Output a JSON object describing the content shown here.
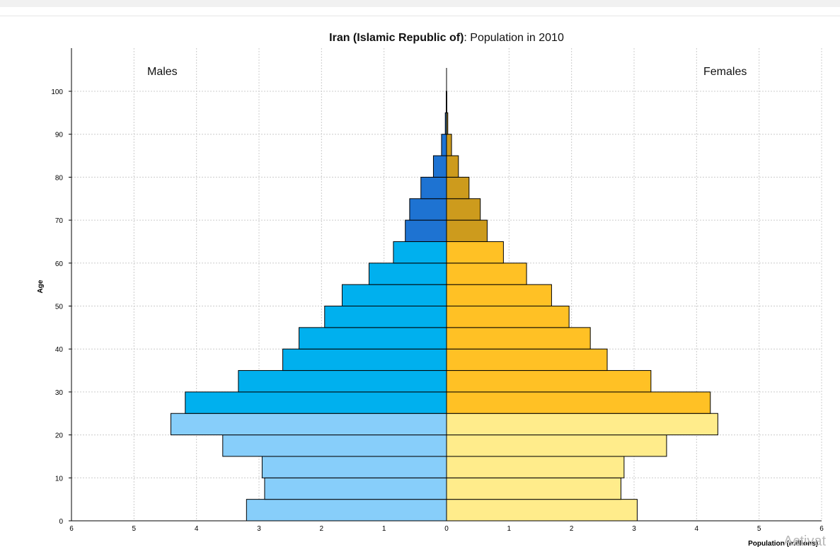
{
  "chart_data": {
    "type": "bar",
    "title_bold": "Iran (Islamic Republic of)",
    "title_rest": ": Population in 2010",
    "ylabel": "Age",
    "xlabel": "Population (millions)",
    "left_label": "Males",
    "right_label": "Females",
    "x_ticks_left": [
      "6",
      "5",
      "4",
      "3",
      "2",
      "1",
      "0"
    ],
    "x_ticks_right": [
      "1",
      "2",
      "3",
      "4",
      "5",
      "6"
    ],
    "y_ticks": [
      "0",
      "10",
      "20",
      "30",
      "40",
      "50",
      "60",
      "70",
      "80",
      "90",
      "100"
    ],
    "xlim": [
      -6,
      6
    ],
    "ylim": [
      0,
      100
    ],
    "grid": true,
    "categories": [
      "0-4",
      "5-9",
      "10-14",
      "15-19",
      "20-24",
      "25-29",
      "30-34",
      "35-39",
      "40-44",
      "45-49",
      "50-54",
      "55-59",
      "60-64",
      "65-69",
      "70-74",
      "75-79",
      "80-84",
      "85-89",
      "90-94",
      "95-99"
    ],
    "series": [
      {
        "name": "Males",
        "values": [
          3.2,
          2.91,
          2.95,
          3.58,
          4.41,
          4.18,
          3.33,
          2.62,
          2.36,
          1.95,
          1.67,
          1.24,
          0.85,
          0.66,
          0.59,
          0.41,
          0.21,
          0.08,
          0.02,
          0.005
        ]
      },
      {
        "name": "Females",
        "values": [
          3.05,
          2.79,
          2.84,
          3.52,
          4.34,
          4.22,
          3.27,
          2.57,
          2.3,
          1.96,
          1.68,
          1.28,
          0.91,
          0.65,
          0.54,
          0.36,
          0.19,
          0.08,
          0.02,
          0.005
        ]
      }
    ],
    "colors": {
      "male_young": "#87cefa",
      "male_mid": "#00b0ee",
      "male_old": "#1e73d2",
      "female_young": "#ffec8b",
      "female_mid": "#ffc125",
      "female_old": "#cd9b1d",
      "outline": "#000000",
      "grid": "#cccccc"
    }
  },
  "watermark": "Activat"
}
